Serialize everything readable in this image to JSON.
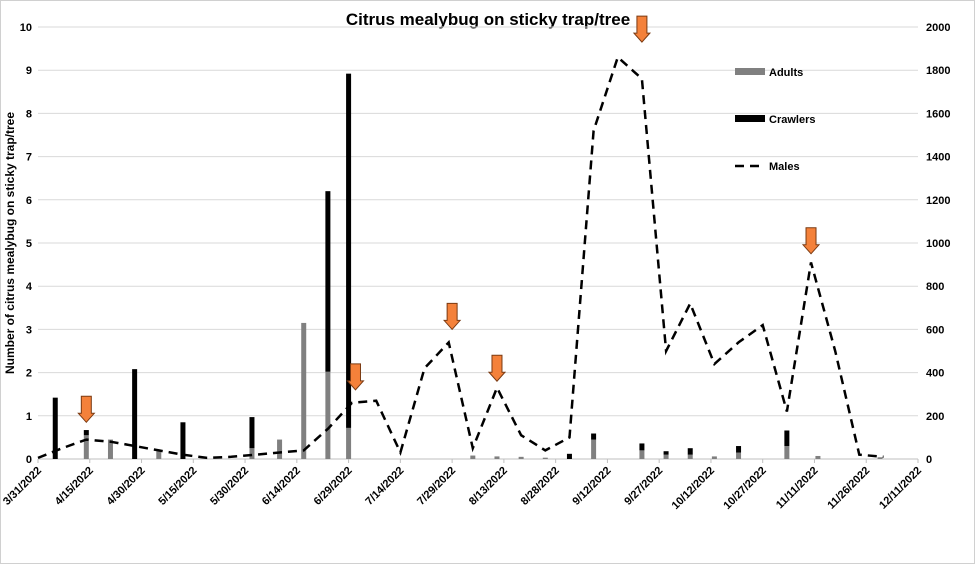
{
  "chart_data": {
    "type": "bar",
    "title": "Citrus mealybug on sticky trap/tree",
    "ylabel": "Number of citrus mealybug on sticky trap/tree",
    "xlabel": "",
    "ylim_left": [
      0,
      10
    ],
    "ylim_right": [
      0,
      2000
    ],
    "yticks_left": [
      "0",
      "1",
      "2",
      "3",
      "4",
      "5",
      "6",
      "7",
      "8",
      "9",
      "10"
    ],
    "yticks_right": [
      "0",
      "200",
      "400",
      "600",
      "800",
      "1000",
      "1200",
      "1400",
      "1600",
      "1800",
      "2000"
    ],
    "x_tick_labels": [
      "3/31/2022",
      "4/15/2022",
      "4/30/2022",
      "5/15/2022",
      "5/30/2022",
      "6/14/2022",
      "6/29/2022",
      "7/14/2022",
      "7/29/2022",
      "8/13/2022",
      "8/28/2022",
      "9/12/2022",
      "9/27/2022",
      "10/12/2022",
      "10/27/2022",
      "11/11/2022",
      "11/26/2022",
      "12/11/2022"
    ],
    "x_range_days": [
      0,
      255
    ],
    "legend": [
      {
        "name": "Adults",
        "color": "#808080",
        "style": "bar"
      },
      {
        "name": "Crawlers",
        "color": "#000000",
        "style": "bar"
      },
      {
        "name": "Males",
        "color": "#000000",
        "style": "dashed-line"
      }
    ],
    "legend_position": "top-right",
    "bars": [
      {
        "day": 5,
        "adults": 0.0,
        "crawlers": 1.42
      },
      {
        "day": 14,
        "adults": 0.55,
        "crawlers": 0.12
      },
      {
        "day": 21,
        "adults": 0.45,
        "crawlers": 0.0
      },
      {
        "day": 28,
        "adults": 0.0,
        "crawlers": 2.08
      },
      {
        "day": 35,
        "adults": 0.18,
        "crawlers": 0.0
      },
      {
        "day": 42,
        "adults": 0.0,
        "crawlers": 0.85
      },
      {
        "day": 62,
        "adults": 0.25,
        "crawlers": 0.72
      },
      {
        "day": 70,
        "adults": 0.45,
        "crawlers": 0.0
      },
      {
        "day": 77,
        "adults": 3.15,
        "crawlers": 0.0
      },
      {
        "day": 84,
        "adults": 2.02,
        "crawlers": 4.18
      },
      {
        "day": 90,
        "adults": 0.72,
        "crawlers": 8.2
      },
      {
        "day": 126,
        "adults": 0.08,
        "crawlers": 0.0
      },
      {
        "day": 133,
        "adults": 0.06,
        "crawlers": 0.0
      },
      {
        "day": 140,
        "adults": 0.05,
        "crawlers": 0.0
      },
      {
        "day": 147,
        "adults": 0.03,
        "crawlers": 0.0
      },
      {
        "day": 154,
        "adults": 0.0,
        "crawlers": 0.12
      },
      {
        "day": 161,
        "adults": 0.45,
        "crawlers": 0.14
      },
      {
        "day": 175,
        "adults": 0.2,
        "crawlers": 0.16
      },
      {
        "day": 182,
        "adults": 0.1,
        "crawlers": 0.08
      },
      {
        "day": 189,
        "adults": 0.1,
        "crawlers": 0.15
      },
      {
        "day": 196,
        "adults": 0.06,
        "crawlers": 0.0
      },
      {
        "day": 203,
        "adults": 0.15,
        "crawlers": 0.15
      },
      {
        "day": 217,
        "adults": 0.3,
        "crawlers": 0.36
      },
      {
        "day": 224,
        "adults": 0.0,
        "crawlers": 0.0
      },
      {
        "day": 226,
        "adults": 0.07,
        "crawlers": 0.0
      },
      {
        "day": 244,
        "adults": 0.04,
        "crawlers": 0.0
      }
    ],
    "males": {
      "name": "Males",
      "x_days": [
        0,
        7,
        14,
        21,
        28,
        35,
        42,
        49,
        56,
        63,
        70,
        77,
        84,
        91,
        98,
        105,
        112,
        119,
        126,
        133,
        140,
        147,
        154,
        161,
        168,
        175,
        182,
        189,
        196,
        203,
        210,
        217,
        224,
        231,
        238,
        245
      ],
      "values": [
        5,
        50,
        90,
        80,
        60,
        40,
        20,
        5,
        10,
        20,
        30,
        40,
        140,
        260,
        270,
        30,
        420,
        540,
        50,
        330,
        110,
        40,
        100,
        1520,
        1860,
        1760,
        500,
        720,
        440,
        540,
        620,
        220,
        910,
        500,
        20,
        10
      ]
    },
    "arrows": [
      {
        "day": 14,
        "y_left": 0.85
      },
      {
        "day": 92,
        "y_left": 1.6
      },
      {
        "day": 120,
        "y_left": 3.0
      },
      {
        "day": 133,
        "y_left": 1.8
      },
      {
        "day": 175,
        "y_left": 9.65
      },
      {
        "day": 224,
        "y_left": 4.75
      }
    ],
    "arrow_color": "#f4813a"
  }
}
